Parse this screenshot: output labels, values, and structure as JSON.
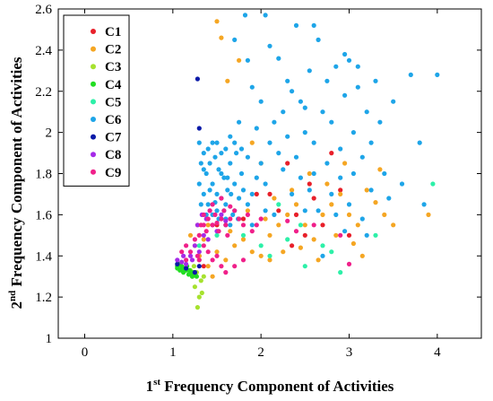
{
  "chart_data": {
    "type": "scatter",
    "xlabel": {
      "prefix": "1",
      "sup": "st",
      "suffix": " Frequency Component of Activities"
    },
    "ylabel": {
      "prefix": "2",
      "sup": "nd",
      "suffix": " Frequency Component of Activities"
    },
    "xlim": [
      -0.3,
      4.5
    ],
    "ylim": [
      1.0,
      2.6
    ],
    "xticks": [
      0,
      1,
      2,
      3,
      4
    ],
    "yticks": [
      1,
      1.2,
      1.4,
      1.6,
      1.8,
      2,
      2.2,
      2.4,
      2.6
    ],
    "grid": false,
    "legend_position": "top-left",
    "series": [
      {
        "name": "C1",
        "color": "#e8202a",
        "points": [
          [
            1.35,
            1.35
          ],
          [
            1.5,
            1.55
          ],
          [
            2.1,
            1.7
          ],
          [
            2.3,
            1.85
          ],
          [
            2.4,
            1.6
          ],
          [
            2.5,
            1.5
          ],
          [
            2.55,
            1.75
          ],
          [
            2.6,
            1.68
          ],
          [
            2.7,
            1.55
          ],
          [
            2.8,
            1.9
          ],
          [
            2.9,
            1.72
          ],
          [
            3.0,
            1.5
          ],
          [
            2.2,
            1.62
          ],
          [
            1.8,
            1.58
          ],
          [
            1.95,
            1.7
          ],
          [
            2.35,
            1.45
          ],
          [
            1.3,
            1.4
          ],
          [
            1.25,
            1.32
          ]
        ]
      },
      {
        "name": "C2",
        "color": "#f5a623",
        "points": [
          [
            1.5,
            2.54
          ],
          [
            1.55,
            2.46
          ],
          [
            1.62,
            2.25
          ],
          [
            1.75,
            2.35
          ],
          [
            1.9,
            1.95
          ],
          [
            2.0,
            1.85
          ],
          [
            1.2,
            1.5
          ],
          [
            1.25,
            1.45
          ],
          [
            1.3,
            1.4
          ],
          [
            1.35,
            1.48
          ],
          [
            1.4,
            1.35
          ],
          [
            1.45,
            1.3
          ],
          [
            1.5,
            1.42
          ],
          [
            1.6,
            1.38
          ],
          [
            1.7,
            1.45
          ],
          [
            1.8,
            1.48
          ],
          [
            1.9,
            1.42
          ],
          [
            2.0,
            1.4
          ],
          [
            2.1,
            1.5
          ],
          [
            2.2,
            1.55
          ],
          [
            2.3,
            1.6
          ],
          [
            2.4,
            1.65
          ],
          [
            2.5,
            1.55
          ],
          [
            2.6,
            1.48
          ],
          [
            2.7,
            1.6
          ],
          [
            2.8,
            1.65
          ],
          [
            2.9,
            1.7
          ],
          [
            3.0,
            1.6
          ],
          [
            3.1,
            1.55
          ],
          [
            3.2,
            1.72
          ],
          [
            3.3,
            1.66
          ],
          [
            3.4,
            1.6
          ],
          [
            3.5,
            1.55
          ],
          [
            3.9,
            1.6
          ],
          [
            2.25,
            1.42
          ],
          [
            2.45,
            1.44
          ],
          [
            2.65,
            1.38
          ],
          [
            2.85,
            1.5
          ],
          [
            3.05,
            1.46
          ],
          [
            2.15,
            1.68
          ],
          [
            2.35,
            1.72
          ],
          [
            2.55,
            1.8
          ],
          [
            2.75,
            1.75
          ],
          [
            1.85,
            1.62
          ],
          [
            2.05,
            1.58
          ],
          [
            3.15,
            1.4
          ],
          [
            3.35,
            1.82
          ],
          [
            2.95,
            1.85
          ],
          [
            2.1,
            1.38
          ],
          [
            1.65,
            1.52
          ],
          [
            1.4,
            1.55
          ],
          [
            1.3,
            1.5
          ],
          [
            1.28,
            1.55
          ]
        ]
      },
      {
        "name": "C3",
        "color": "#a6e22e",
        "points": [
          [
            1.28,
            1.15
          ],
          [
            1.3,
            1.2
          ],
          [
            1.25,
            1.25
          ],
          [
            1.22,
            1.3
          ],
          [
            1.32,
            1.28
          ],
          [
            1.27,
            1.32
          ],
          [
            1.3,
            1.38
          ],
          [
            1.24,
            1.35
          ],
          [
            1.2,
            1.33
          ],
          [
            1.35,
            1.3
          ],
          [
            1.33,
            1.22
          ]
        ]
      },
      {
        "name": "C4",
        "color": "#22dd22",
        "points": [
          [
            1.05,
            1.35
          ],
          [
            1.08,
            1.33
          ],
          [
            1.1,
            1.34
          ],
          [
            1.12,
            1.32
          ],
          [
            1.15,
            1.33
          ],
          [
            1.18,
            1.31
          ],
          [
            1.2,
            1.32
          ],
          [
            1.22,
            1.3
          ],
          [
            1.25,
            1.31
          ],
          [
            1.05,
            1.34
          ],
          [
            1.07,
            1.36
          ],
          [
            1.1,
            1.35
          ],
          [
            1.13,
            1.34
          ],
          [
            1.16,
            1.35
          ],
          [
            1.19,
            1.33
          ],
          [
            1.23,
            1.32
          ],
          [
            1.27,
            1.3
          ]
        ]
      },
      {
        "name": "C5",
        "color": "#2df0a8",
        "points": [
          [
            1.3,
            1.45
          ],
          [
            1.5,
            1.5
          ],
          [
            1.6,
            1.55
          ],
          [
            1.8,
            1.5
          ],
          [
            2.0,
            1.45
          ],
          [
            2.1,
            1.4
          ],
          [
            2.3,
            1.48
          ],
          [
            2.5,
            1.35
          ],
          [
            2.7,
            1.45
          ],
          [
            2.9,
            1.32
          ],
          [
            3.3,
            1.5
          ],
          [
            3.95,
            1.75
          ],
          [
            2.2,
            1.65
          ],
          [
            2.45,
            1.55
          ],
          [
            2.8,
            1.42
          ]
        ]
      },
      {
        "name": "C6",
        "color": "#1ea5e8",
        "points": [
          [
            1.3,
            1.95
          ],
          [
            1.32,
            1.85
          ],
          [
            1.35,
            1.9
          ],
          [
            1.38,
            1.8
          ],
          [
            1.4,
            1.92
          ],
          [
            1.42,
            1.85
          ],
          [
            1.45,
            1.75
          ],
          [
            1.48,
            1.88
          ],
          [
            1.5,
            1.7
          ],
          [
            1.52,
            1.82
          ],
          [
            1.55,
            1.9
          ],
          [
            1.58,
            1.78
          ],
          [
            1.6,
            1.65
          ],
          [
            1.62,
            1.72
          ],
          [
            1.65,
            1.85
          ],
          [
            1.68,
            1.6
          ],
          [
            1.7,
            1.75
          ],
          [
            1.72,
            1.9
          ],
          [
            1.75,
            1.68
          ],
          [
            1.78,
            1.8
          ],
          [
            1.3,
            1.75
          ],
          [
            1.35,
            1.7
          ],
          [
            1.4,
            1.65
          ],
          [
            1.45,
            1.6
          ],
          [
            1.5,
            1.62
          ],
          [
            1.55,
            1.68
          ],
          [
            1.6,
            1.58
          ],
          [
            1.65,
            1.55
          ],
          [
            1.32,
            1.65
          ],
          [
            1.38,
            1.6
          ],
          [
            1.42,
            1.72
          ],
          [
            1.48,
            1.66
          ],
          [
            1.52,
            1.58
          ],
          [
            1.58,
            1.62
          ],
          [
            1.62,
            1.78
          ],
          [
            1.66,
            1.7
          ],
          [
            1.7,
            1.62
          ],
          [
            1.74,
            1.58
          ],
          [
            1.8,
            1.72
          ],
          [
            1.85,
            1.65
          ],
          [
            1.9,
            1.7
          ],
          [
            1.95,
            1.78
          ],
          [
            2.0,
            1.85
          ],
          [
            2.05,
            1.75
          ],
          [
            2.1,
            1.95
          ],
          [
            2.15,
            2.05
          ],
          [
            2.2,
            1.9
          ],
          [
            2.25,
            2.1
          ],
          [
            2.3,
            1.98
          ],
          [
            2.35,
            2.2
          ],
          [
            2.4,
            1.88
          ],
          [
            2.45,
            2.15
          ],
          [
            2.5,
            2.0
          ],
          [
            2.55,
            2.3
          ],
          [
            2.6,
            1.95
          ],
          [
            2.65,
            2.45
          ],
          [
            2.7,
            2.1
          ],
          [
            2.75,
            2.25
          ],
          [
            2.8,
            2.05
          ],
          [
            2.85,
            2.32
          ],
          [
            2.9,
            1.92
          ],
          [
            2.95,
            2.18
          ],
          [
            3.0,
            2.35
          ],
          [
            3.05,
            2.0
          ],
          [
            3.1,
            2.22
          ],
          [
            3.15,
            1.88
          ],
          [
            3.2,
            2.1
          ],
          [
            3.25,
            1.95
          ],
          [
            3.3,
            2.25
          ],
          [
            3.35,
            2.05
          ],
          [
            3.4,
            1.8
          ],
          [
            3.5,
            2.15
          ],
          [
            3.6,
            1.75
          ],
          [
            3.7,
            2.28
          ],
          [
            3.8,
            1.95
          ],
          [
            3.85,
            1.65
          ],
          [
            4.0,
            2.28
          ],
          [
            1.82,
            2.57
          ],
          [
            2.05,
            2.57
          ],
          [
            2.1,
            2.42
          ],
          [
            1.7,
            2.45
          ],
          [
            1.85,
            2.35
          ],
          [
            2.2,
            2.36
          ],
          [
            2.4,
            2.52
          ],
          [
            2.6,
            2.52
          ],
          [
            2.95,
            2.38
          ],
          [
            3.1,
            2.32
          ],
          [
            1.9,
            2.22
          ],
          [
            2.0,
            2.15
          ],
          [
            2.3,
            2.25
          ],
          [
            2.5,
            2.12
          ],
          [
            1.75,
            2.05
          ],
          [
            1.95,
            2.02
          ],
          [
            2.25,
            1.82
          ],
          [
            2.45,
            1.78
          ],
          [
            2.6,
            1.8
          ],
          [
            2.75,
            1.85
          ],
          [
            2.9,
            1.78
          ],
          [
            3.05,
            1.8
          ],
          [
            3.25,
            1.72
          ],
          [
            2.35,
            1.7
          ],
          [
            2.55,
            1.72
          ],
          [
            2.8,
            1.7
          ],
          [
            3.0,
            1.65
          ],
          [
            1.5,
            1.95
          ],
          [
            1.55,
            1.8
          ],
          [
            1.6,
            1.92
          ],
          [
            1.65,
            1.98
          ],
          [
            1.7,
            1.95
          ],
          [
            1.78,
            1.92
          ],
          [
            1.85,
            1.88
          ],
          [
            1.35,
            1.82
          ],
          [
            1.45,
            1.95
          ],
          [
            2.15,
            1.6
          ],
          [
            2.65,
            1.62
          ],
          [
            3.15,
            1.58
          ],
          [
            2.05,
            1.62
          ],
          [
            1.9,
            1.55
          ],
          [
            2.5,
            1.62
          ],
          [
            2.85,
            1.6
          ],
          [
            3.45,
            1.68
          ],
          [
            3.2,
            1.5
          ],
          [
            2.95,
            1.52
          ],
          [
            2.7,
            1.4
          ]
        ]
      },
      {
        "name": "C7",
        "color": "#0a1aa8",
        "points": [
          [
            1.28,
            2.26
          ],
          [
            1.3,
            2.02
          ],
          [
            1.05,
            1.36
          ],
          [
            1.15,
            1.34
          ],
          [
            1.25,
            1.32
          ],
          [
            1.3,
            1.35
          ]
        ]
      },
      {
        "name": "C8",
        "color": "#a52ae8",
        "points": [
          [
            1.05,
            1.38
          ],
          [
            1.1,
            1.37
          ],
          [
            1.15,
            1.36
          ],
          [
            1.2,
            1.4
          ],
          [
            1.25,
            1.45
          ],
          [
            1.3,
            1.42
          ],
          [
            1.35,
            1.5
          ],
          [
            1.4,
            1.48
          ],
          [
            1.45,
            1.55
          ],
          [
            1.5,
            1.52
          ],
          [
            1.55,
            1.6
          ],
          [
            1.6,
            1.57
          ],
          [
            1.28,
            1.55
          ],
          [
            1.33,
            1.6
          ],
          [
            1.38,
            1.58
          ],
          [
            1.42,
            1.62
          ],
          [
            1.12,
            1.4
          ],
          [
            1.22,
            1.38
          ]
        ]
      },
      {
        "name": "C9",
        "color": "#f0208a",
        "points": [
          [
            1.3,
            1.5
          ],
          [
            1.32,
            1.55
          ],
          [
            1.35,
            1.6
          ],
          [
            1.38,
            1.52
          ],
          [
            1.4,
            1.58
          ],
          [
            1.42,
            1.62
          ],
          [
            1.45,
            1.55
          ],
          [
            1.48,
            1.6
          ],
          [
            1.5,
            1.56
          ],
          [
            1.52,
            1.52
          ],
          [
            1.55,
            1.58
          ],
          [
            1.58,
            1.62
          ],
          [
            1.6,
            1.55
          ],
          [
            1.62,
            1.5
          ],
          [
            1.65,
            1.58
          ],
          [
            1.7,
            1.62
          ],
          [
            1.75,
            1.58
          ],
          [
            1.8,
            1.55
          ],
          [
            1.85,
            1.6
          ],
          [
            1.9,
            1.52
          ],
          [
            1.95,
            1.55
          ],
          [
            2.0,
            1.58
          ],
          [
            2.3,
            1.57
          ],
          [
            2.4,
            1.52
          ],
          [
            2.6,
            1.55
          ],
          [
            2.9,
            1.5
          ],
          [
            1.28,
            1.4
          ],
          [
            1.35,
            1.45
          ],
          [
            1.4,
            1.42
          ],
          [
            1.45,
            1.38
          ],
          [
            1.5,
            1.4
          ],
          [
            1.55,
            1.35
          ],
          [
            1.6,
            1.32
          ],
          [
            1.7,
            1.35
          ],
          [
            1.8,
            1.38
          ],
          [
            1.2,
            1.42
          ],
          [
            1.25,
            1.48
          ],
          [
            1.3,
            1.38
          ],
          [
            1.15,
            1.45
          ],
          [
            1.1,
            1.42
          ],
          [
            1.35,
            1.55
          ],
          [
            1.45,
            1.65
          ],
          [
            1.55,
            1.68
          ],
          [
            1.65,
            1.64
          ],
          [
            1.15,
            1.38
          ],
          [
            3.0,
            1.36
          ]
        ]
      }
    ]
  }
}
